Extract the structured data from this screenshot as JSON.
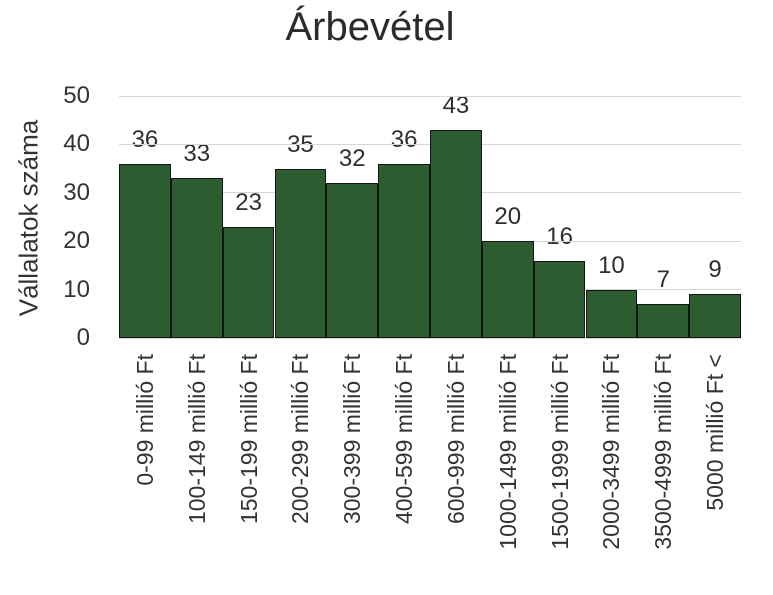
{
  "chart_data": {
    "type": "bar",
    "title": "Árbevétel",
    "ylabel": "Vállalatok száma",
    "xlabel": "",
    "categories": [
      "0-99 millió Ft",
      "100-149 millió Ft",
      "150-199 millió Ft",
      "200-299 millió Ft",
      "300-399 millió Ft",
      "400-599 millió Ft",
      "600-999 millió Ft",
      "1000-1499 millió Ft",
      "1500-1999 millió Ft",
      "2000-3499 millió Ft",
      "3500-4999 millió Ft",
      "5000 millió Ft <"
    ],
    "values": [
      36,
      33,
      23,
      35,
      32,
      36,
      43,
      20,
      16,
      10,
      7,
      9
    ],
    "ylim": [
      0,
      50
    ],
    "yticks": [
      0,
      10,
      20,
      30,
      40,
      50
    ],
    "grid": true,
    "legend": false,
    "data_labels": true,
    "colors": {
      "bar_fill": "#2d5c31",
      "bar_border": "#141414",
      "gridline": "#d6d6d6",
      "text": "#333333"
    }
  }
}
